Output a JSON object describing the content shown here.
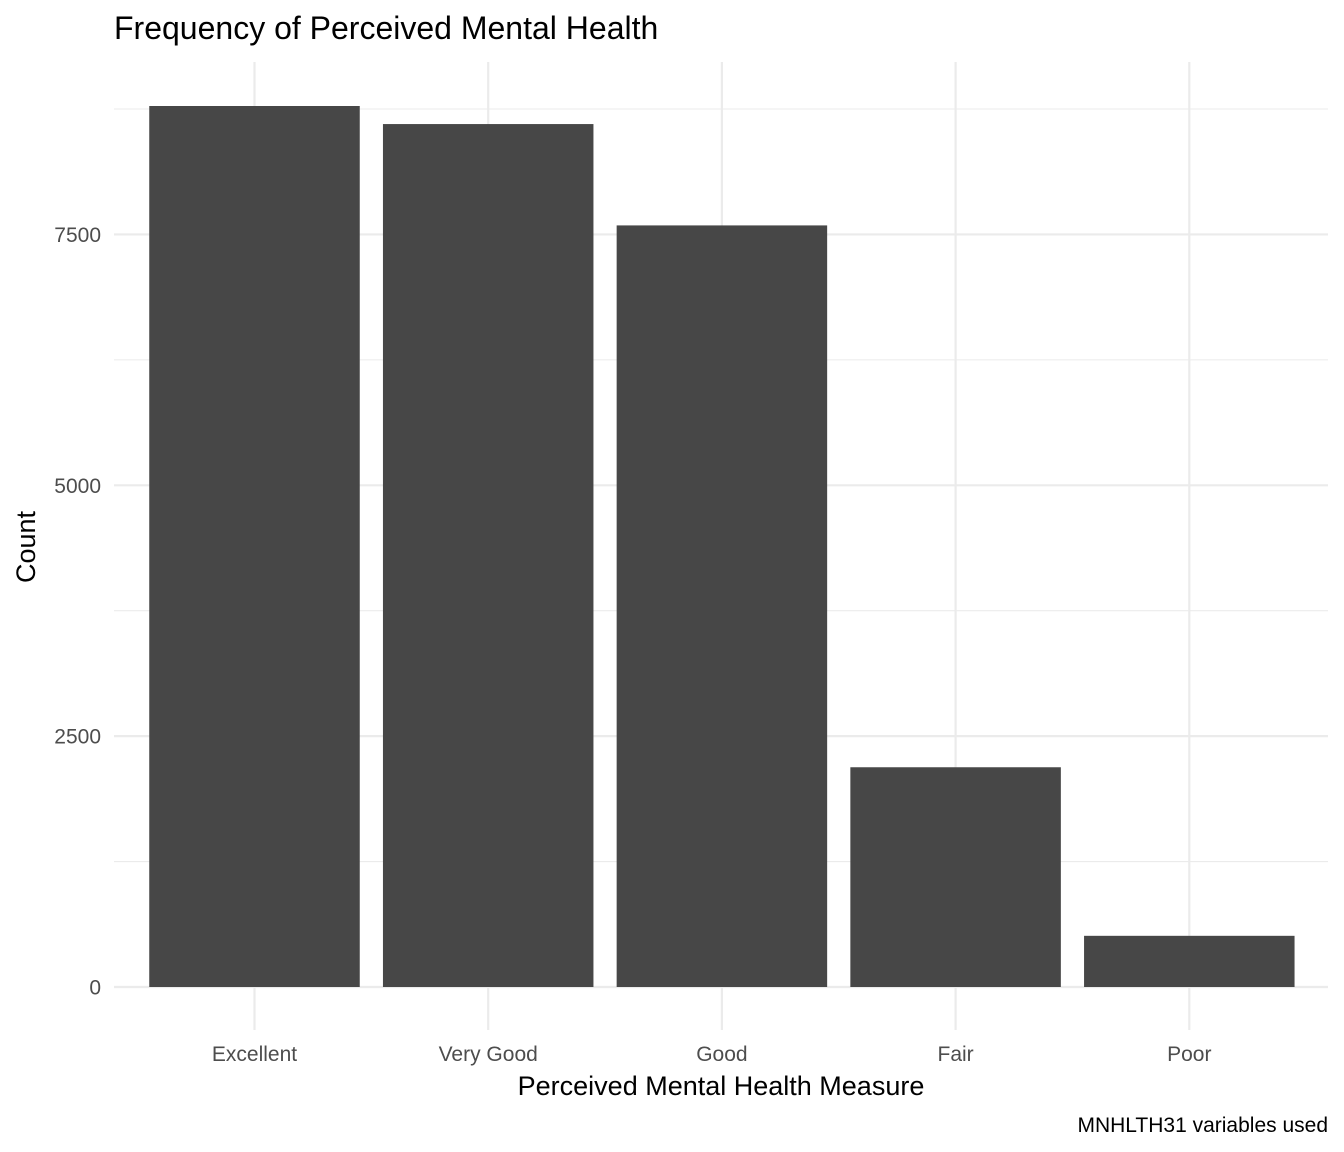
{
  "chart_data": {
    "type": "bar",
    "title": "Frequency of Perceived Mental Health",
    "xlabel": "Perceived Mental Health Measure",
    "ylabel": "Count",
    "caption": "MNHLTH31 variables used",
    "categories": [
      "Excellent",
      "Very Good",
      "Good",
      "Fair",
      "Poor"
    ],
    "values": [
      8780,
      8600,
      7590,
      2190,
      510
    ],
    "ylim": [
      0,
      8780
    ],
    "yticks": [
      0,
      2500,
      5000,
      7500
    ],
    "ytick_labels": [
      "0",
      "2500",
      "5000",
      "7500"
    ],
    "grid": true,
    "bar_color": "#474747",
    "grid_color": "#ebebeb"
  }
}
